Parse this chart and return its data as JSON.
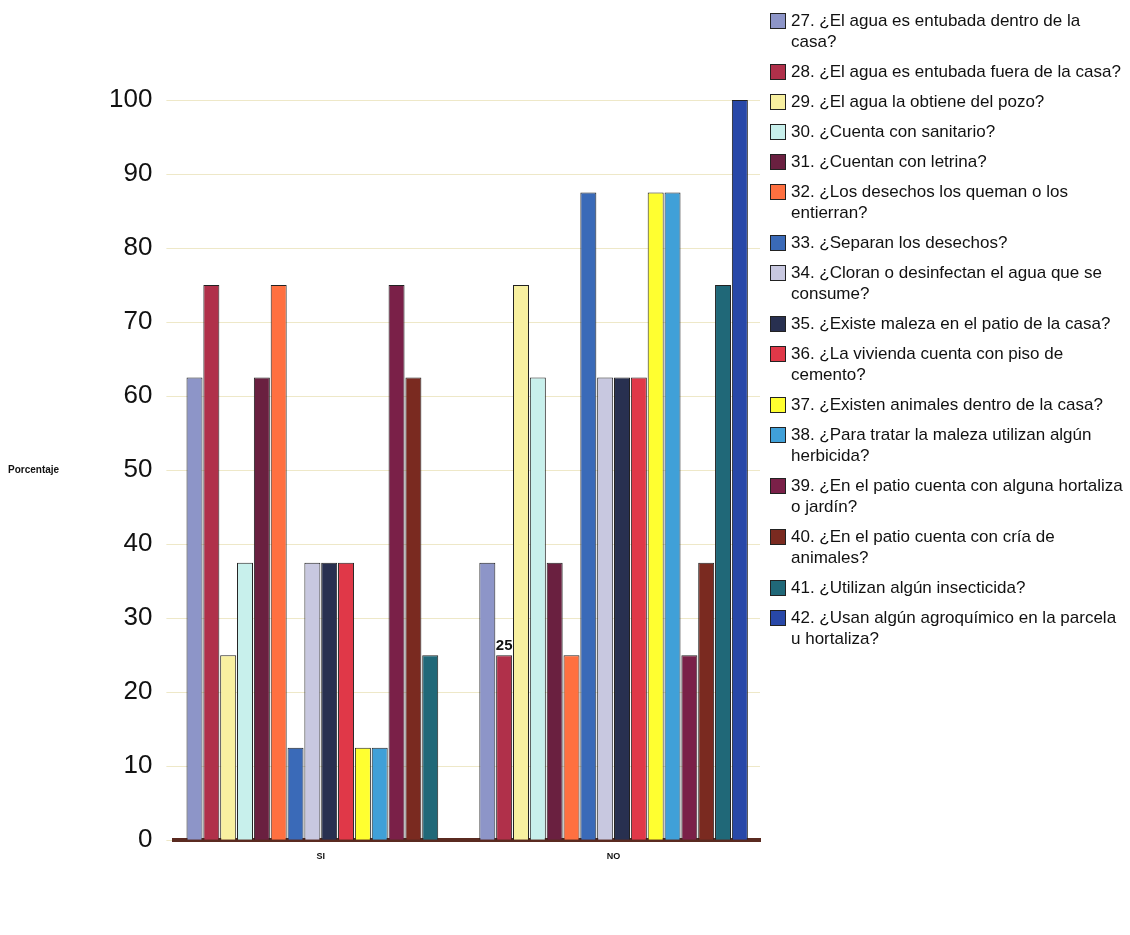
{
  "chart_data": {
    "type": "bar",
    "ylabel": "Porcentaje",
    "categories": [
      "SI",
      "NO"
    ],
    "ylim": [
      0,
      100
    ],
    "yticks": [
      0,
      10,
      20,
      30,
      40,
      50,
      60,
      70,
      80,
      90,
      100
    ],
    "grid": "y",
    "legend": "right",
    "series": [
      {
        "name": "27. ¿El agua es entubada dentro de la casa?",
        "color": "#8d95c8",
        "values": [
          62.5,
          37.5
        ]
      },
      {
        "name": "28. ¿El agua es entubada fuera de la casa?",
        "color": "#b0304a",
        "values": [
          75,
          25
        ],
        "value_labels": [
          null,
          "25"
        ]
      },
      {
        "name": "29. ¿El agua la obtiene del pozo?",
        "color": "#f8f0a0",
        "values": [
          25,
          75
        ]
      },
      {
        "name": "30. ¿Cuenta con sanitario?",
        "color": "#c8f0ec",
        "values": [
          37.5,
          62.5
        ]
      },
      {
        "name": "31. ¿Cuentan con letrina?",
        "color": "#6a2040",
        "values": [
          62.5,
          37.5
        ]
      },
      {
        "name": "32. ¿Los desechos los queman o los entierran?",
        "color": "#ff7040",
        "values": [
          75,
          25
        ]
      },
      {
        "name": "33. ¿Separan los desechos?",
        "color": "#3a6ab8",
        "values": [
          12.5,
          87.5
        ]
      },
      {
        "name": "34. ¿Cloran o desinfectan el agua que se consume?",
        "color": "#c8c8e0",
        "values": [
          37.5,
          62.5
        ]
      },
      {
        "name": "35. ¿Existe maleza en el patio de la casa?",
        "color": "#283050",
        "values": [
          37.5,
          62.5
        ]
      },
      {
        "name": "36. ¿La vivienda cuenta con piso de cemento?",
        "color": "#e03848",
        "values": [
          37.5,
          62.5
        ]
      },
      {
        "name": "37. ¿Existen animales dentro de la casa?",
        "color": "#ffff30",
        "values": [
          12.5,
          87.5
        ]
      },
      {
        "name": "38. ¿Para tratar la maleza utilizan algún herbicida?",
        "color": "#40a0d8",
        "values": [
          12.5,
          87.5
        ]
      },
      {
        "name": "39. ¿En el patio cuenta con alguna hortaliza o jardín?",
        "color": "#7a2048",
        "values": [
          75,
          25
        ]
      },
      {
        "name": "40. ¿En el patio cuenta con cría de animales?",
        "color": "#7a2a20",
        "values": [
          62.5,
          37.5
        ]
      },
      {
        "name": "41. ¿Utilizan algún insecticida?",
        "color": "#206878",
        "values": [
          25,
          75
        ]
      },
      {
        "name": "42. ¿Usan algún agroquímico en la parcela u hortaliza?",
        "color": "#2848a8",
        "values": [
          0,
          100
        ]
      }
    ]
  }
}
